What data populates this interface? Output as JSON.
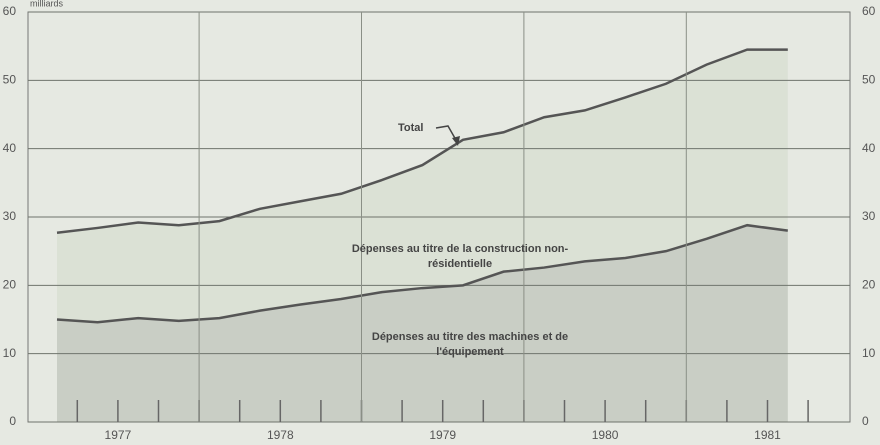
{
  "chart_data": {
    "type": "stacked_area",
    "y_axis_label": "milliards",
    "categories": [
      "1977",
      null,
      null,
      null,
      "1978",
      null,
      null,
      null,
      "1979",
      null,
      null,
      null,
      "1980",
      null,
      null,
      null,
      "1981",
      null,
      null
    ],
    "series": [
      {
        "name": "Dépenses au titre des machines et de l'équipement",
        "color": "#c9cec5",
        "values": [
          15,
          14.6,
          15.2,
          14.8,
          15.2,
          16.3,
          17.2,
          18,
          19,
          19.6,
          20,
          22,
          22.6,
          23.5,
          24,
          25,
          26.8,
          28.8,
          28
        ]
      },
      {
        "name": "Dépenses au titre de la construction non-résidentielle",
        "color": "#dbe1d5",
        "values": [
          12.7,
          13.8,
          14.0,
          14.0,
          14.2,
          14.9,
          15.1,
          15.4,
          16.4,
          18.0,
          21.3,
          20.4,
          22.0,
          22.1,
          23.5,
          24.5,
          25.5,
          25.7,
          26.5
        ]
      }
    ],
    "annotations": [
      "Total"
    ],
    "ylim": [
      0,
      60
    ],
    "yticks": [
      0,
      10,
      20,
      30,
      40,
      50,
      60
    ],
    "grid": true
  }
}
